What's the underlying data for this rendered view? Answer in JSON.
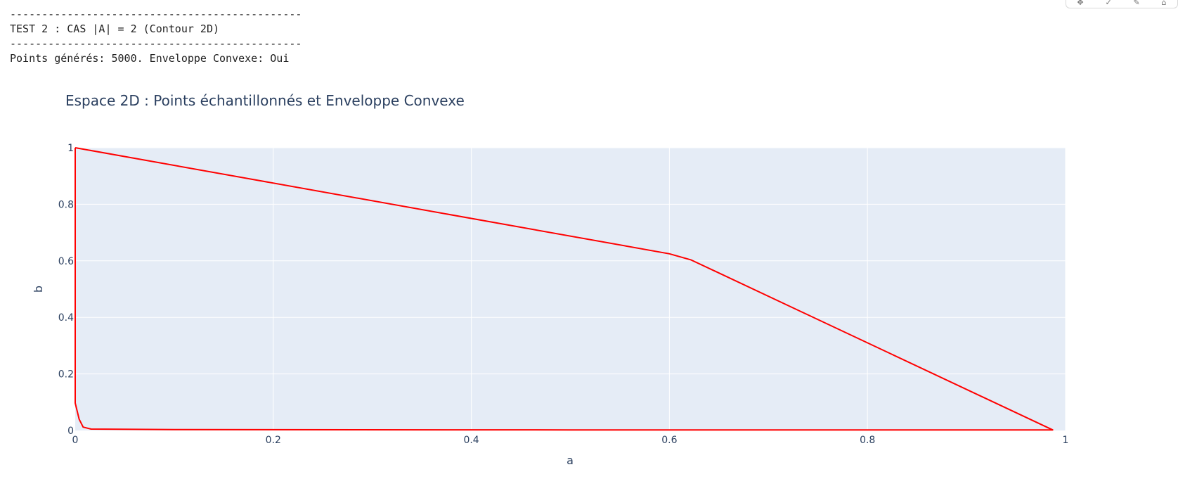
{
  "console": {
    "lines": [
      "----------------------------------------------",
      "TEST 2 : CAS |A| = 2 (Contour 2D)",
      "----------------------------------------------",
      "Points générés: 5000. Enveloppe Convexe: Oui"
    ]
  },
  "modebar": {
    "icons": [
      "pan-icon",
      "check-icon",
      "pencil-icon",
      "home-icon"
    ]
  },
  "chart_data": {
    "type": "line",
    "title": "Espace 2D : Points échantillonnés et Enveloppe Convexe",
    "xlabel": "a",
    "ylabel": "b",
    "xlim": [
      0,
      1
    ],
    "ylim": [
      0,
      1
    ],
    "xticks": [
      0,
      0.2,
      0.4,
      0.6,
      0.8,
      1
    ],
    "xtick_labels": [
      "0",
      "0.2",
      "0.4",
      "0.6",
      "0.8",
      "1"
    ],
    "yticks": [
      0,
      0.2,
      0.4,
      0.6,
      0.8,
      1
    ],
    "ytick_labels": [
      "0",
      "0.2",
      "0.4",
      "0.6",
      "0.8",
      "1"
    ],
    "grid": true,
    "legend": false,
    "colors": {
      "plot_bg": "#e5ecf6",
      "grid": "#ffffff",
      "line": "#ff0000",
      "title": "#2a3f5f",
      "tick": "#2a3f5f"
    },
    "series": [
      {
        "x": [
          0,
          0.6,
          0.622,
          0.987,
          0.5,
          0.1,
          0.016,
          0.008,
          0.004,
          0,
          0
        ],
        "y": [
          1,
          0.625,
          0.603,
          0.002,
          0.002,
          0.003,
          0.005,
          0.012,
          0.04,
          0.097,
          1
        ]
      }
    ]
  }
}
